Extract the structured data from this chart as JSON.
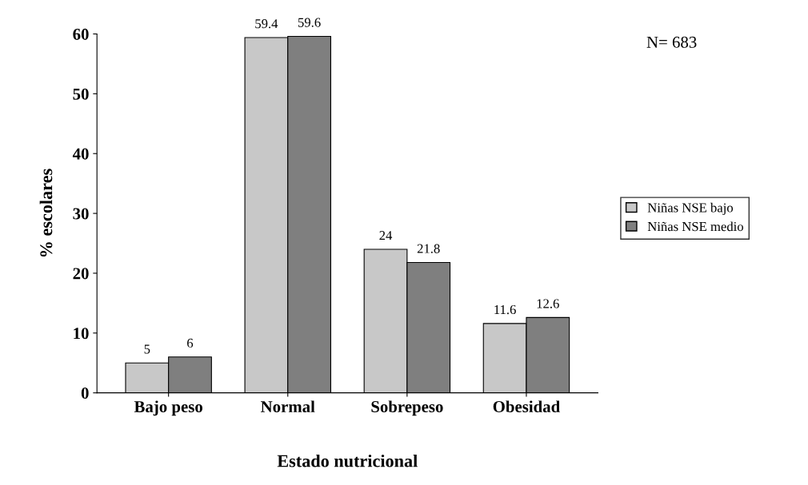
{
  "chart_data": {
    "type": "bar",
    "xlabel": "Estado nutricional",
    "ylabel": "% escolares",
    "categories": [
      "Bajo peso",
      "Normal",
      "Sobrepeso",
      "Obesidad"
    ],
    "series": [
      {
        "name": "Niñas NSE bajo",
        "color": "#c8c8c8",
        "values": [
          5,
          59.4,
          24,
          11.6
        ]
      },
      {
        "name": "Niñas NSE medio",
        "color": "#7f7f7f",
        "values": [
          6,
          59.6,
          21.8,
          12.6
        ]
      }
    ],
    "ylim": [
      0,
      60
    ],
    "yticks": [
      0,
      10,
      20,
      30,
      40,
      50,
      60
    ],
    "data_labels": true,
    "legend": "right",
    "grid": false,
    "annotations": [
      "N= 683"
    ]
  }
}
